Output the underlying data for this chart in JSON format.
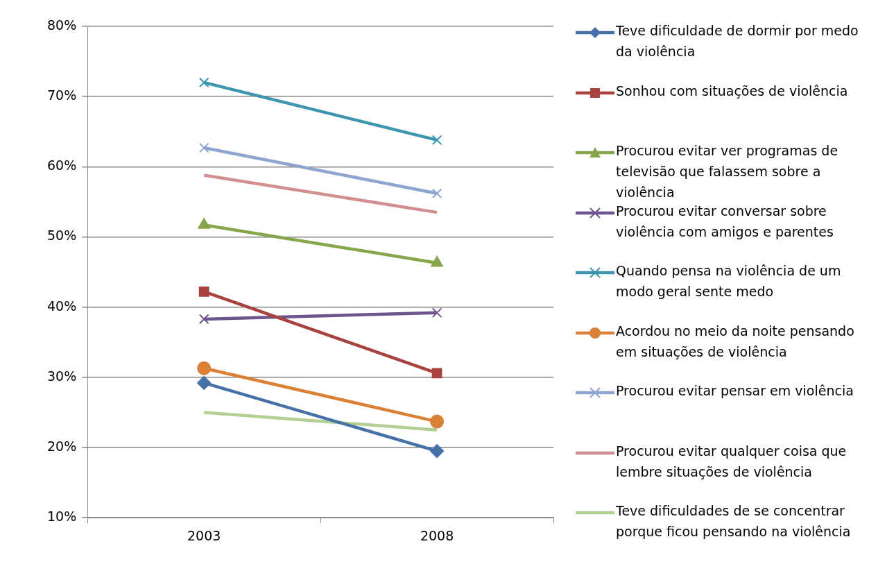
{
  "chart_data": {
    "type": "line",
    "categories": [
      "2003",
      "2008"
    ],
    "ylim": [
      10,
      80
    ],
    "yticks": [
      {
        "value": 10,
        "label": "10%"
      },
      {
        "value": 20,
        "label": "20%"
      },
      {
        "value": 30,
        "label": "30%"
      },
      {
        "value": 40,
        "label": "40%"
      },
      {
        "value": 50,
        "label": "50%"
      },
      {
        "value": 60,
        "label": "60%"
      },
      {
        "value": 70,
        "label": "70%"
      },
      {
        "value": 80,
        "label": "80%"
      }
    ],
    "grid": "y",
    "legend": "right",
    "series": [
      {
        "name": "Teve dificuldade de dormir por medo da violência",
        "color": "#4571a8",
        "marker": "diamond",
        "values": [
          29.2,
          19.5
        ]
      },
      {
        "name": "Sonhou com situações de violência",
        "color": "#a8423f",
        "marker": "square",
        "values": [
          42.2,
          30.6
        ]
      },
      {
        "name": "Procurou evitar ver programas de televisão que falassem sobre a violência",
        "color": "#87a64b",
        "marker": "triangle",
        "values": [
          51.7,
          46.3
        ]
      },
      {
        "name": "Procurou evitar conversar sobre violência com amigos e parentes",
        "color": "#6e548d",
        "marker": "cross",
        "values": [
          38.3,
          39.2
        ]
      },
      {
        "name": " Quando pensa na violência de um modo geral sente medo",
        "color": "#3c96ae",
        "marker": "cross",
        "values": [
          72.0,
          63.8
        ]
      },
      {
        "name": "Acordou no meio da noite pensando em situações de violência",
        "color": "#da8137",
        "marker": "circle",
        "values": [
          31.3,
          23.7
        ]
      },
      {
        "name": "Procurou evitar pensar em violência",
        "color": "#8ea5cf",
        "marker": "cross",
        "values": [
          62.7,
          56.2
        ]
      },
      {
        "name": "Procurou evitar qualquer coisa que lembre situações de violência",
        "color": "#d28f8f",
        "marker": "none",
        "values": [
          58.8,
          53.5
        ]
      },
      {
        "name": "Teve dificuldades de se concentrar porque ficou pensando na violência",
        "color": "#b4cf93",
        "marker": "none",
        "values": [
          25.0,
          22.5
        ]
      }
    ]
  }
}
